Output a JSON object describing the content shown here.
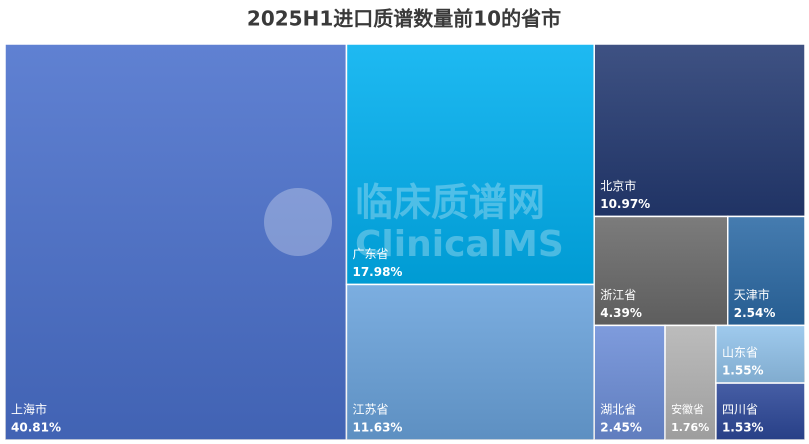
{
  "chart_data": {
    "type": "treemap",
    "title": "2025H1进口质谱数量前10的省市",
    "categories": [
      "上海市",
      "广东省",
      "江苏省",
      "北京市",
      "浙江省",
      "天津市",
      "湖北省",
      "安徽省",
      "山东省",
      "四川省"
    ],
    "values": [
      40.81,
      17.98,
      11.63,
      10.97,
      4.39,
      2.54,
      2.45,
      1.76,
      1.55,
      1.53
    ],
    "value_labels": [
      "40.81%",
      "17.98%",
      "11.63%",
      "10.97%",
      "4.39%",
      "2.54%",
      "2.45%",
      "1.76%",
      "1.55%",
      "1.53%"
    ],
    "colors": [
      "#4a70cc",
      "#00b0f0",
      "#6aa3dc",
      "#243a72",
      "#6a6a6a",
      "#2c6aa5",
      "#6d8ed8",
      "#b3b3b3",
      "#92c3eb",
      "#2d4899"
    ],
    "watermark": {
      "text": "临床质谱网",
      "subtext": "ClinicalMS"
    }
  }
}
